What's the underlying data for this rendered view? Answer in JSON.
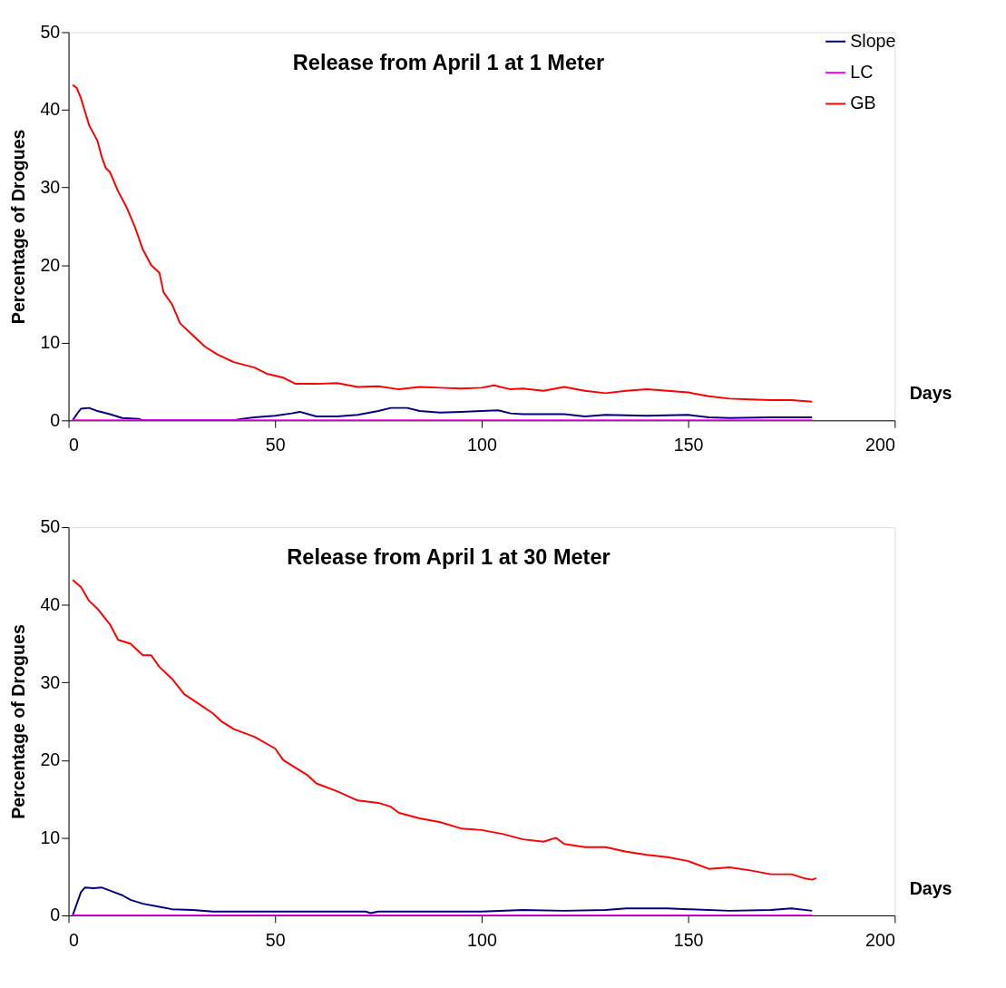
{
  "chart_data": [
    {
      "type": "line",
      "title": "Release from April 1 at 1 Meter",
      "xlabel": "Days",
      "ylabel": "Percentage of Drogues",
      "xlim": [
        0,
        200
      ],
      "xticks": [
        0,
        50,
        100,
        150,
        200
      ],
      "ylim": [
        0,
        50
      ],
      "yticks": [
        0,
        10,
        20,
        30,
        40,
        50
      ],
      "grid": false,
      "legend": "top right",
      "marker": "none",
      "line_style": "solid",
      "series": [
        {
          "name": "Slope",
          "color": "#000080",
          "x": [
            1,
            2,
            3,
            5,
            7,
            10,
            13,
            17,
            18,
            40,
            42,
            45,
            50,
            54,
            56,
            58,
            60,
            65,
            70,
            75,
            78,
            82,
            85,
            90,
            95,
            100,
            104,
            107,
            110,
            120,
            125,
            130,
            140,
            150,
            155,
            160,
            170,
            175,
            180
          ],
          "values": [
            0,
            0.8,
            1.5,
            1.6,
            1.2,
            0.8,
            0.3,
            0.2,
            0,
            0,
            0.2,
            0.4,
            0.6,
            0.9,
            1.1,
            0.8,
            0.5,
            0.5,
            0.7,
            1.2,
            1.6,
            1.6,
            1.2,
            1.0,
            1.1,
            1.2,
            1.3,
            0.9,
            0.8,
            0.8,
            0.5,
            0.7,
            0.6,
            0.7,
            0.4,
            0.3,
            0.4,
            0.4,
            0.4
          ]
        },
        {
          "name": "LC",
          "color": "#ff00ff",
          "x": [
            1,
            180
          ],
          "values": [
            0,
            0
          ]
        },
        {
          "name": "GB",
          "color": "#ff0000",
          "x": [
            1,
            2,
            3,
            5,
            7,
            8,
            9,
            10,
            12,
            14,
            16,
            18,
            20,
            22,
            23,
            25,
            27,
            30,
            33,
            36,
            40,
            45,
            48,
            52,
            55,
            60,
            65,
            70,
            75,
            80,
            85,
            90,
            95,
            100,
            103,
            107,
            110,
            115,
            120,
            125,
            130,
            135,
            140,
            145,
            150,
            155,
            160,
            165,
            170,
            175,
            180
          ],
          "values": [
            43.2,
            42.8,
            41.5,
            38,
            36,
            34,
            32.5,
            32,
            29.5,
            27.5,
            25,
            22,
            20,
            19,
            16.5,
            15,
            12.5,
            11,
            9.5,
            8.5,
            7.5,
            6.8,
            6,
            5.5,
            4.7,
            4.7,
            4.8,
            4.3,
            4.4,
            4,
            4.3,
            4.2,
            4.1,
            4.2,
            4.5,
            4,
            4.1,
            3.8,
            4.3,
            3.8,
            3.5,
            3.8,
            4,
            3.8,
            3.6,
            3.1,
            2.8,
            2.7,
            2.6,
            2.6,
            2.4
          ]
        }
      ]
    },
    {
      "type": "line",
      "title": "Release from April 1 at 30 Meter",
      "xlabel": "Days",
      "ylabel": "Percentage of Drogues",
      "xlim": [
        0,
        200
      ],
      "xticks": [
        0,
        50,
        100,
        150,
        200
      ],
      "ylim": [
        0,
        50
      ],
      "yticks": [
        0,
        10,
        20,
        30,
        40,
        50
      ],
      "grid": false,
      "legend": "top right",
      "marker": "none",
      "line_style": "solid",
      "series": [
        {
          "name": "Slope",
          "color": "#000080",
          "x": [
            1,
            2,
            3,
            4,
            6,
            8,
            10,
            13,
            15,
            18,
            22,
            25,
            30,
            35,
            50,
            72,
            73,
            75,
            85,
            100,
            110,
            120,
            130,
            135,
            145,
            150,
            160,
            170,
            175,
            180
          ],
          "values": [
            0,
            1.5,
            3,
            3.6,
            3.5,
            3.6,
            3.2,
            2.6,
            2,
            1.5,
            1.1,
            0.8,
            0.7,
            0.5,
            0.5,
            0.5,
            0.3,
            0.5,
            0.5,
            0.5,
            0.7,
            0.6,
            0.7,
            0.9,
            0.9,
            0.8,
            0.6,
            0.7,
            0.9,
            0.6
          ]
        },
        {
          "name": "LC",
          "color": "#ff00ff",
          "x": [
            1,
            180
          ],
          "values": [
            0,
            0
          ]
        },
        {
          "name": "GB",
          "color": "#ff0000",
          "x": [
            1,
            3,
            5,
            7,
            10,
            12,
            15,
            18,
            20,
            22,
            25,
            28,
            30,
            35,
            37,
            40,
            45,
            50,
            52,
            55,
            58,
            60,
            65,
            70,
            75,
            78,
            80,
            85,
            90,
            95,
            100,
            105,
            110,
            115,
            118,
            120,
            125,
            130,
            135,
            140,
            145,
            150,
            155,
            160,
            165,
            170,
            175,
            178,
            180,
            181
          ],
          "values": [
            43.2,
            42.3,
            40.5,
            39.5,
            37.5,
            35.5,
            35,
            33.5,
            33.5,
            32,
            30.5,
            28.5,
            27.8,
            26,
            25,
            24,
            23,
            21.5,
            20,
            19,
            18,
            17,
            16,
            14.8,
            14.5,
            14,
            13.2,
            12.5,
            12,
            11.2,
            11,
            10.5,
            9.8,
            9.5,
            10,
            9.2,
            8.8,
            8.8,
            8.2,
            7.8,
            7.5,
            7,
            6,
            6.2,
            5.8,
            5.3,
            5.3,
            4.8,
            4.6,
            4.8
          ]
        }
      ]
    }
  ]
}
